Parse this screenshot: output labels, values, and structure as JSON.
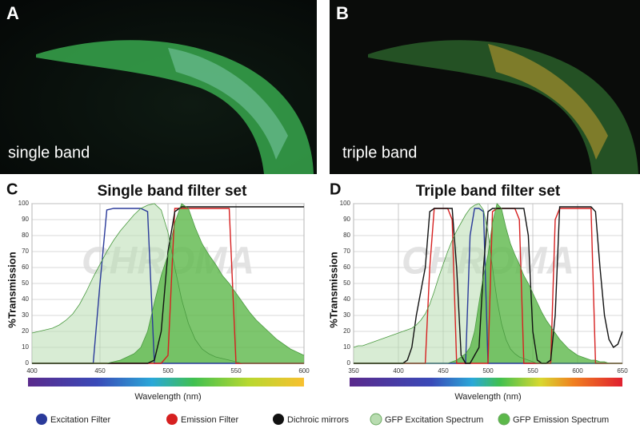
{
  "images": [
    {
      "label": "A",
      "caption": "single band"
    },
    {
      "label": "B",
      "caption": "triple band"
    }
  ],
  "chart_data": [
    {
      "type": "line",
      "label": "C",
      "title": "Single band filter set",
      "y_label": "%Transmission",
      "x_label": "Wavelength (nm)",
      "watermark": "CHROMA",
      "grid": true,
      "xlim": [
        400,
        600
      ],
      "xticks": [
        400,
        450,
        500,
        550,
        600
      ],
      "ylim": [
        0,
        100
      ],
      "yticks": [
        0,
        10,
        20,
        30,
        40,
        50,
        60,
        70,
        80,
        90,
        100
      ],
      "x": [
        400,
        405,
        410,
        415,
        420,
        425,
        430,
        435,
        440,
        445,
        450,
        455,
        460,
        465,
        470,
        475,
        480,
        485,
        490,
        495,
        500,
        505,
        510,
        515,
        520,
        525,
        530,
        535,
        540,
        545,
        550,
        555,
        560,
        565,
        570,
        575,
        580,
        585,
        590,
        595,
        600
      ],
      "series": [
        {
          "name": "Excitation Filter",
          "color": "#2a3a9a",
          "fill": false,
          "values": [
            0,
            0,
            0,
            0,
            0,
            0,
            0,
            0,
            0,
            0,
            50,
            96,
            97,
            97,
            97,
            97,
            97,
            95,
            0,
            0,
            0,
            0,
            0,
            0,
            0,
            0,
            0,
            0,
            0,
            0,
            0,
            0,
            0,
            0,
            0,
            0,
            0,
            0,
            0,
            0,
            0
          ]
        },
        {
          "name": "Emission Filter",
          "color": "#d62020",
          "fill": false,
          "values": [
            0,
            0,
            0,
            0,
            0,
            0,
            0,
            0,
            0,
            0,
            0,
            0,
            0,
            0,
            0,
            0,
            0,
            0,
            0,
            0,
            5,
            97,
            97,
            97,
            97,
            97,
            97,
            97,
            97,
            97,
            0,
            0,
            0,
            0,
            0,
            0,
            0,
            0,
            0,
            0,
            0
          ]
        },
        {
          "name": "Dichroic mirrors",
          "color": "#111111",
          "fill": false,
          "values": [
            0,
            0,
            0,
            0,
            0,
            0,
            0,
            0,
            0,
            0,
            0,
            0,
            0,
            0,
            0,
            0,
            0,
            0,
            2,
            20,
            70,
            95,
            98,
            98,
            98,
            98,
            98,
            98,
            98,
            98,
            98,
            98,
            98,
            98,
            98,
            98,
            98,
            98,
            98,
            98,
            98
          ]
        },
        {
          "name": "GFP Excitation Spectrum",
          "color": "#b8dcb0",
          "fill": true,
          "values": [
            19,
            20,
            21,
            22,
            24,
            27,
            31,
            37,
            45,
            54,
            62,
            70,
            77,
            83,
            88,
            93,
            97,
            99,
            100,
            96,
            82,
            60,
            40,
            25,
            15,
            9,
            6,
            4,
            3,
            2,
            1,
            0,
            0,
            0,
            0,
            0,
            0,
            0,
            0,
            0,
            0
          ]
        },
        {
          "name": "GFP Emission Spectrum",
          "color": "#5cb84a",
          "fill": true,
          "values": [
            0,
            0,
            0,
            0,
            0,
            0,
            0,
            0,
            0,
            0,
            0,
            0,
            1,
            2,
            4,
            6,
            10,
            20,
            38,
            55,
            68,
            88,
            100,
            97,
            85,
            75,
            68,
            62,
            55,
            50,
            44,
            38,
            32,
            27,
            23,
            19,
            15,
            12,
            9,
            7,
            5
          ]
        }
      ]
    },
    {
      "type": "line",
      "label": "D",
      "title": "Triple band filter set",
      "y_label": "%Transmission",
      "x_label": "Wavelength (nm)",
      "watermark": "CHROMA",
      "grid": true,
      "xlim": [
        350,
        650
      ],
      "xticks": [
        350,
        400,
        450,
        500,
        550,
        600,
        650
      ],
      "ylim": [
        0,
        100
      ],
      "yticks": [
        0,
        10,
        20,
        30,
        40,
        50,
        60,
        70,
        80,
        90,
        100
      ],
      "x": [
        350,
        355,
        360,
        365,
        370,
        375,
        380,
        385,
        390,
        395,
        400,
        405,
        410,
        415,
        420,
        425,
        430,
        435,
        440,
        445,
        450,
        455,
        460,
        465,
        470,
        475,
        480,
        485,
        490,
        495,
        500,
        505,
        510,
        515,
        520,
        525,
        530,
        535,
        540,
        545,
        550,
        555,
        560,
        565,
        570,
        575,
        580,
        585,
        590,
        595,
        600,
        605,
        610,
        615,
        620,
        625,
        630,
        635,
        640,
        645,
        650
      ],
      "series": [
        {
          "name": "Excitation Filter",
          "color": "#2a3a9a",
          "fill": false,
          "values": [
            0,
            0,
            0,
            0,
            0,
            0,
            0,
            0,
            0,
            0,
            0,
            0,
            0,
            0,
            0,
            0,
            0,
            0,
            0,
            0,
            0,
            0,
            0,
            0,
            0,
            0,
            80,
            97,
            97,
            95,
            0,
            0,
            0,
            0,
            0,
            0,
            0,
            0,
            0,
            0,
            0,
            0,
            0,
            0,
            0,
            0,
            0,
            0,
            0,
            0,
            0,
            0,
            0,
            0,
            0,
            0,
            0,
            0,
            0,
            0,
            0
          ]
        },
        {
          "name": "Emission Filter",
          "color": "#d62020",
          "fill": false,
          "values": [
            0,
            0,
            0,
            0,
            0,
            0,
            0,
            0,
            0,
            0,
            0,
            0,
            0,
            0,
            0,
            0,
            0,
            60,
            97,
            97,
            97,
            97,
            90,
            0,
            0,
            0,
            0,
            0,
            0,
            0,
            0,
            95,
            97,
            97,
            97,
            97,
            97,
            90,
            0,
            0,
            0,
            0,
            0,
            0,
            0,
            90,
            97,
            97,
            97,
            97,
            97,
            97,
            97,
            97,
            0,
            0,
            0,
            0,
            0,
            0,
            0
          ]
        },
        {
          "name": "Dichroic mirrors",
          "color": "#111111",
          "fill": false,
          "values": [
            0,
            0,
            0,
            0,
            0,
            0,
            0,
            0,
            0,
            0,
            0,
            0,
            2,
            10,
            30,
            45,
            60,
            95,
            97,
            97,
            97,
            97,
            97,
            60,
            5,
            0,
            0,
            5,
            10,
            60,
            95,
            97,
            97,
            97,
            97,
            97,
            97,
            97,
            97,
            80,
            20,
            2,
            0,
            0,
            2,
            30,
            98,
            98,
            98,
            98,
            98,
            98,
            98,
            98,
            95,
            60,
            30,
            15,
            10,
            12,
            20
          ]
        },
        {
          "name": "GFP Excitation Spectrum",
          "color": "#b8dcb0",
          "fill": true,
          "values": [
            10,
            11,
            11,
            12,
            13,
            14,
            15,
            16,
            17,
            18,
            19,
            20,
            21,
            22,
            24,
            27,
            31,
            37,
            45,
            54,
            62,
            70,
            77,
            83,
            88,
            93,
            97,
            99,
            100,
            96,
            82,
            60,
            40,
            25,
            15,
            9,
            6,
            4,
            3,
            2,
            1,
            0,
            0,
            0,
            0,
            0,
            0,
            0,
            0,
            0,
            0,
            0,
            0,
            0,
            0,
            0,
            0,
            0,
            0,
            0,
            0
          ]
        },
        {
          "name": "GFP Emission Spectrum",
          "color": "#5cb84a",
          "fill": true,
          "values": [
            0,
            0,
            0,
            0,
            0,
            0,
            0,
            0,
            0,
            0,
            0,
            0,
            0,
            0,
            0,
            0,
            0,
            0,
            0,
            0,
            0,
            0,
            1,
            2,
            4,
            6,
            10,
            20,
            38,
            55,
            68,
            88,
            100,
            97,
            85,
            75,
            68,
            62,
            55,
            50,
            44,
            38,
            32,
            27,
            23,
            19,
            15,
            12,
            9,
            7,
            5,
            4,
            3,
            2,
            2,
            1,
            1,
            0,
            0,
            0,
            0
          ]
        }
      ]
    }
  ]
}
